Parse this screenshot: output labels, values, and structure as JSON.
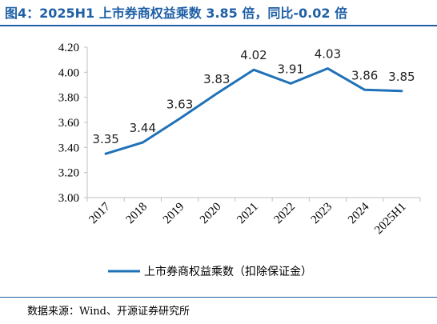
{
  "figure": {
    "title": "图4：2025H1 上市券商权益乘数 3.85 倍，同比-0.02 倍",
    "source": "数据来源：Wind、开源证券研究所"
  },
  "colors": {
    "accent": "#1f5fa6",
    "line": "#1f72b8"
  },
  "chart_data": {
    "type": "line",
    "title": "",
    "xlabel": "",
    "ylabel": "",
    "categories": [
      "2017",
      "2018",
      "2019",
      "2020",
      "2021",
      "2022",
      "2023",
      "2024",
      "2025H1"
    ],
    "series": [
      {
        "name": "上市券商权益乘数（扣除保证金）",
        "values": [
          3.35,
          3.44,
          3.63,
          3.83,
          4.02,
          3.91,
          4.03,
          3.86,
          3.85
        ],
        "labels": [
          "3.35",
          "3.44",
          "3.63",
          "3.83",
          "4.02",
          "3.91",
          "4.03",
          "3.86",
          "3.85"
        ]
      }
    ],
    "ylim": [
      3.0,
      4.2
    ],
    "yticks": [
      "3.00",
      "3.20",
      "3.40",
      "3.60",
      "3.80",
      "4.00",
      "4.20"
    ],
    "grid": false,
    "legend": "bottom-center"
  }
}
